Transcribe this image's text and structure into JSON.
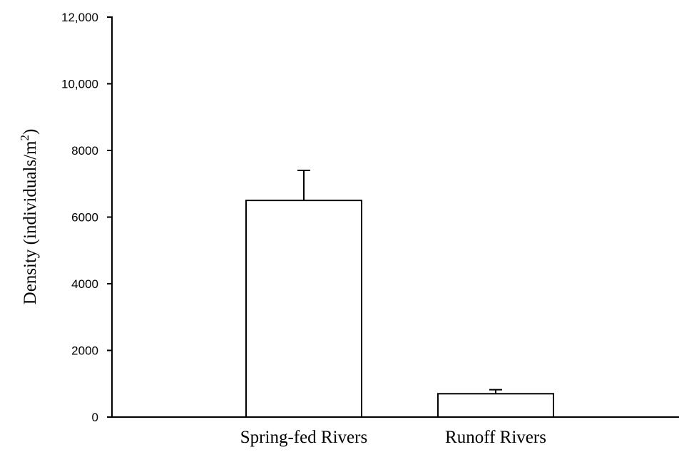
{
  "chart_data": {
    "type": "bar",
    "categories": [
      "Spring-fed Rivers",
      "Runoff Rivers"
    ],
    "values": [
      6500,
      700
    ],
    "error_bars": [
      900,
      120
    ],
    "title": "",
    "xlabel": "",
    "ylabel": {
      "text": "Density (individuals/m",
      "superscript": "2",
      "suffix": ")"
    },
    "ylim": [
      0,
      12000
    ],
    "yticks": [
      0,
      2000,
      4000,
      6000,
      8000,
      10000,
      12000
    ],
    "ytick_labels": [
      "0",
      "2000",
      "4000",
      "6000",
      "8000",
      "10,000",
      "12,000"
    ],
    "grid": false,
    "legend": "none",
    "colors": {
      "bar_fill": "#ffffff",
      "bar_stroke": "#000000",
      "axis": "#000000"
    }
  }
}
